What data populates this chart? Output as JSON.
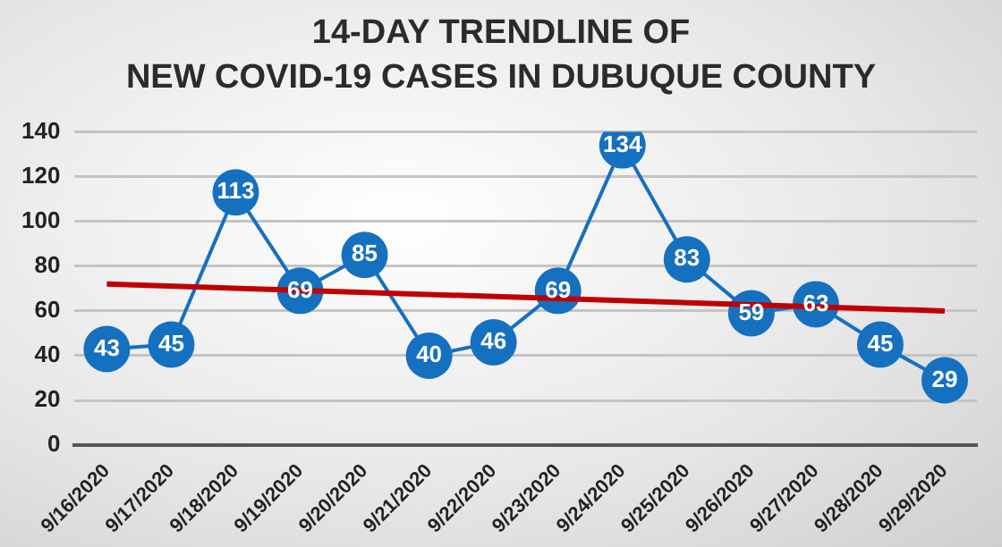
{
  "chart_data": {
    "type": "line",
    "title": "14-DAY TRENDLINE OF\nNEW COVID-19 CASES IN DUBUQUE COUNTY",
    "categories": [
      "9/16/2020",
      "9/17/2020",
      "9/18/2020",
      "9/19/2020",
      "9/20/2020",
      "9/21/2020",
      "9/22/2020",
      "9/23/2020",
      "9/24/2020",
      "9/25/2020",
      "9/26/2020",
      "9/27/2020",
      "9/28/2020",
      "9/29/2020"
    ],
    "series": [
      {
        "color": "#1570c0",
        "values": [
          43,
          45,
          113,
          69,
          85,
          40,
          46,
          69,
          134,
          83,
          59,
          63,
          45,
          29
        ],
        "marker": "circle",
        "data_labels": true
      },
      {
        "type": "line",
        "color": "#c00000",
        "x": [
          "9/16/2020",
          "9/29/2020"
        ],
        "values": [
          72,
          60
        ],
        "marker": "none"
      }
    ],
    "ylim": [
      0,
      140
    ],
    "yticks": [
      0,
      20,
      40,
      60,
      80,
      100,
      120,
      140
    ],
    "grid": "y",
    "legend": false
  }
}
